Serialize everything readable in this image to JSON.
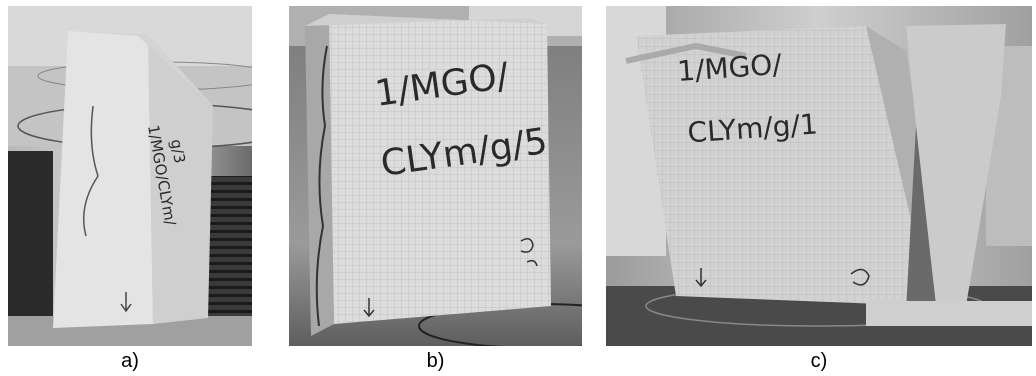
{
  "figure": {
    "panels": [
      {
        "id": "a",
        "caption": "a)",
        "specimen_label_lines": [
          "1/MGO/CLYm/",
          "g/3"
        ]
      },
      {
        "id": "b",
        "caption": "b)",
        "specimen_label_lines": [
          "1/MGO/",
          "CLYm/g/5"
        ]
      },
      {
        "id": "c",
        "caption": "c)",
        "specimen_label_lines": [
          "1/MGO/",
          "CLYm/g/1"
        ]
      }
    ]
  }
}
